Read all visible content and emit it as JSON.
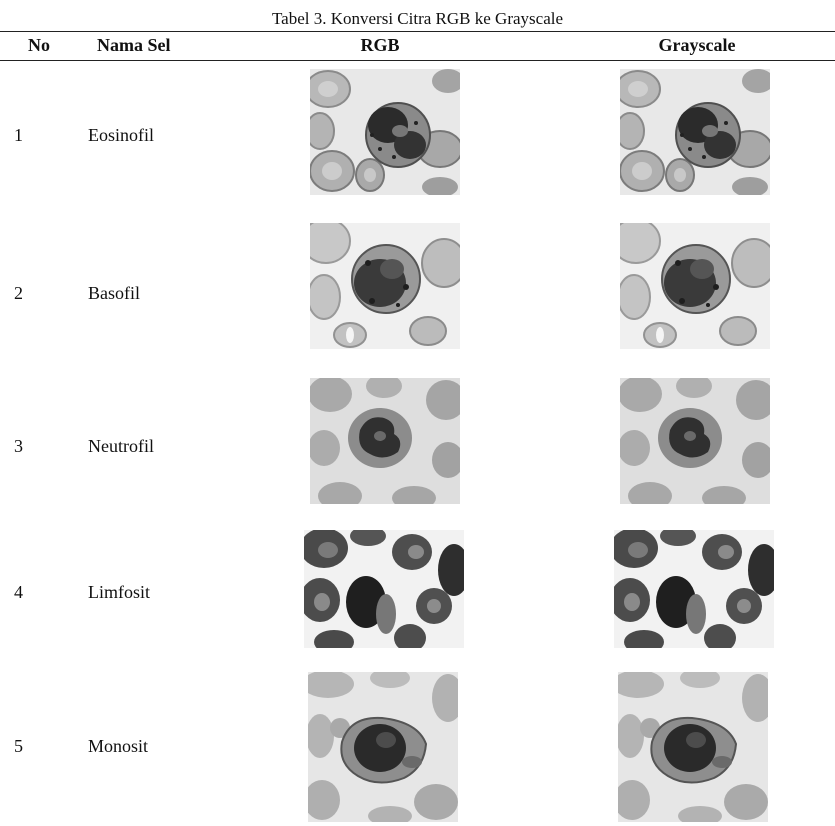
{
  "table": {
    "caption": "Tabel 3. Konversi Citra RGB ke Grayscale",
    "headers": {
      "no": "No",
      "nama_sel": "Nama Sel",
      "rgb": "RGB",
      "grayscale": "Grayscale"
    },
    "rows": [
      {
        "no": "1",
        "nama_sel": "Eosinofil"
      },
      {
        "no": "2",
        "nama_sel": "Basofil"
      },
      {
        "no": "3",
        "nama_sel": "Neutrofil"
      },
      {
        "no": "4",
        "nama_sel": "Limfosit"
      },
      {
        "no": "5",
        "nama_sel": "Monosit"
      }
    ]
  }
}
